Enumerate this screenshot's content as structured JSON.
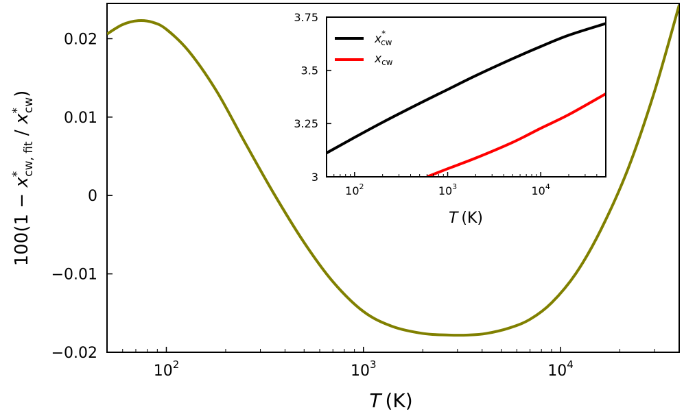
{
  "chart_data": [
    {
      "type": "line",
      "x_scale": "log",
      "xlabel_italic": "T",
      "xlabel_unit": "(K)",
      "ylabel_parts": {
        "prefix": "100",
        "open": "(1 − ",
        "var1": "x",
        "sup1": "*",
        "sub1": "cw, fit",
        "mid": " / ",
        "var2": "x",
        "sup2": "*",
        "sub2": "cw",
        "close": ")"
      },
      "xlim": [
        50,
        40000
      ],
      "ylim": [
        -0.02,
        0.0245
      ],
      "x_ticks": [
        {
          "value": 100,
          "base": "10",
          "exp": "2"
        },
        {
          "value": 1000,
          "base": "10",
          "exp": "3"
        },
        {
          "value": 10000,
          "base": "10",
          "exp": "4"
        }
      ],
      "y_ticks": [
        {
          "value": 0.02,
          "label": "0.02"
        },
        {
          "value": 0.01,
          "label": "0.01"
        },
        {
          "value": 0,
          "label": "0"
        },
        {
          "value": -0.01,
          "label": "−0.01"
        },
        {
          "value": -0.02,
          "label": "−0.02"
        }
      ],
      "series": [
        {
          "name": "100(1 − x*cw,fit / x*cw)",
          "color": "#808000",
          "x": [
            50,
            60,
            72,
            85,
            100,
            130,
            180,
            250,
            350,
            500,
            700,
            1000,
            1400,
            2000,
            2700,
            3400,
            4200,
            5500,
            7000,
            9000,
            12000,
            16000,
            22000,
            30000,
            40000
          ],
          "y": [
            0.0206,
            0.0218,
            0.0223,
            0.0221,
            0.0212,
            0.0184,
            0.0133,
            0.0068,
            0.0003,
            -0.006,
            -0.011,
            -0.0148,
            -0.0167,
            -0.0176,
            -0.0178,
            -0.0178,
            -0.0176,
            -0.0169,
            -0.0158,
            -0.0137,
            -0.0099,
            -0.0044,
            0.0034,
            0.0133,
            0.0243
          ]
        }
      ]
    },
    {
      "type": "line",
      "x_scale": "log",
      "xlabel_italic": "T",
      "xlabel_unit": "(K)",
      "xlim": [
        50,
        50000
      ],
      "ylim": [
        3.0,
        3.75
      ],
      "x_ticks": [
        {
          "value": 100,
          "base": "10",
          "exp": "2"
        },
        {
          "value": 1000,
          "base": "10",
          "exp": "3"
        },
        {
          "value": 10000,
          "base": "10",
          "exp": "4"
        }
      ],
      "y_ticks": [
        {
          "value": 3.75,
          "label": "3.75"
        },
        {
          "value": 3.5,
          "label": "3.5"
        },
        {
          "value": 3.25,
          "label": "3.25"
        },
        {
          "value": 3.0,
          "label": "3"
        }
      ],
      "legend": {
        "position": "top-left",
        "entries": [
          {
            "var": "x",
            "sup": "*",
            "sub": "cw",
            "color": "#000000"
          },
          {
            "var": "x",
            "sup": "",
            "sub": "cw",
            "color": "#ff0000"
          }
        ]
      },
      "series": [
        {
          "name": "x*cw",
          "color": "#000000",
          "x": [
            50,
            100,
            200,
            500,
            1000,
            2000,
            5000,
            10000,
            20000,
            50000
          ],
          "y": [
            3.112,
            3.185,
            3.256,
            3.345,
            3.41,
            3.475,
            3.555,
            3.612,
            3.665,
            3.72
          ]
        },
        {
          "name": "xcw",
          "color": "#ff0000",
          "x": [
            600,
            1000,
            2000,
            5000,
            10000,
            20000,
            50000
          ],
          "y": [
            3.0,
            3.038,
            3.088,
            3.162,
            3.228,
            3.292,
            3.39
          ]
        }
      ]
    }
  ]
}
